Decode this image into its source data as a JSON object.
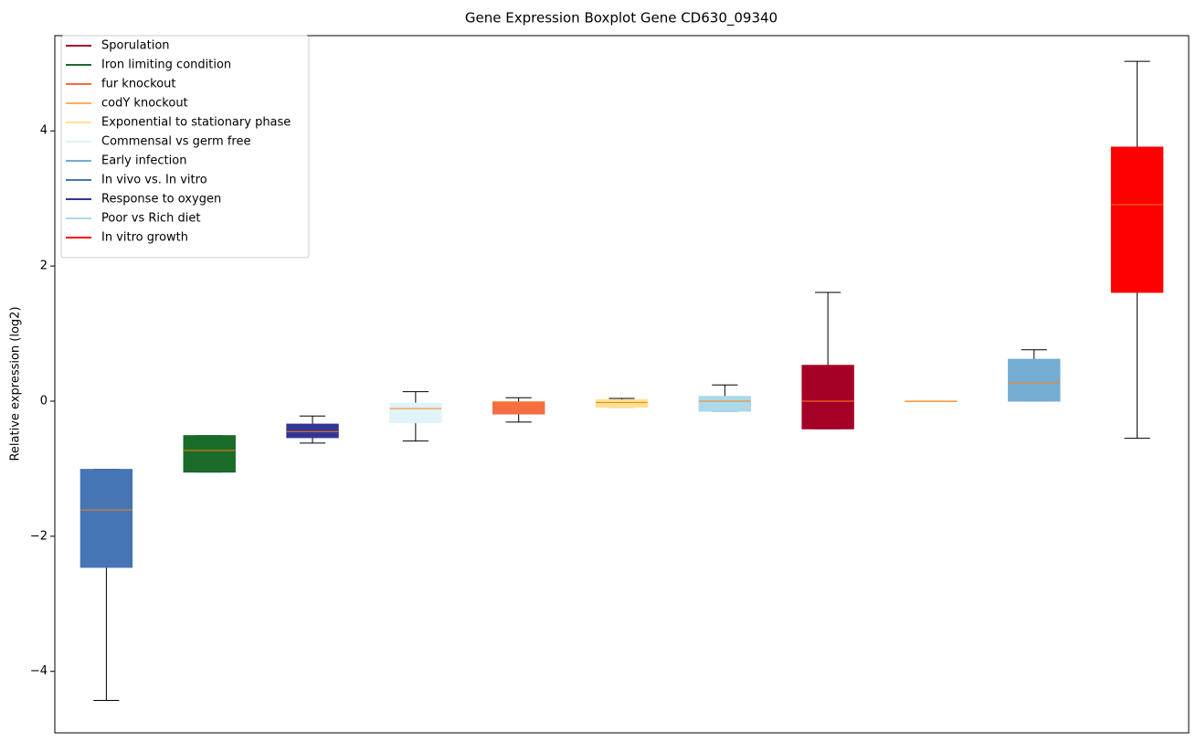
{
  "chart_data": {
    "type": "box",
    "title": "Gene Expression Boxplot Gene CD630_09340",
    "y_label": "Relative expression (log2)",
    "ylim": [
      -4.91,
      5.41
    ],
    "yticks": [
      {
        "value": -4,
        "label": "−4"
      },
      {
        "value": -2,
        "label": "−2"
      },
      0,
      2,
      4
    ],
    "median_color": "#ff7f0e",
    "whisker_color": "#000000",
    "legend_loc": "upper left",
    "boxes": [
      {
        "color": "#4575b4",
        "whislo": -4.43,
        "q1": -2.46,
        "med": -1.61,
        "q3": -1.01,
        "whishi": -1.01
      },
      {
        "color": "#1a6b2a",
        "whislo": -1.05,
        "q1": -1.05,
        "med": -0.73,
        "q3": -0.51,
        "whishi": -0.51
      },
      {
        "color": "#313695",
        "whislo": -0.62,
        "q1": -0.54,
        "med": -0.45,
        "q3": -0.34,
        "whishi": -0.22
      },
      {
        "color": "#e0f3f8",
        "whislo": -0.59,
        "q1": -0.32,
        "med": -0.11,
        "q3": -0.03,
        "whishi": 0.14
      },
      {
        "color": "#f46d43",
        "whislo": -0.31,
        "q1": -0.19,
        "med": -0.02,
        "q3": -0.01,
        "whishi": 0.05
      },
      {
        "color": "#fee090",
        "whislo": -0.09,
        "q1": -0.09,
        "med": -0.02,
        "q3": 0.02,
        "whishi": 0.04
      },
      {
        "color": "#abd9e9",
        "whislo": -0.15,
        "q1": -0.15,
        "med": 0,
        "q3": 0.07,
        "whishi": 0.24
      },
      {
        "color": "#a50026",
        "whislo": -0.41,
        "q1": -0.41,
        "med": 0,
        "q3": 0.53,
        "whishi": 1.61
      },
      {
        "color": "#fdae61",
        "whislo": 0,
        "q1": 0,
        "med": 0,
        "q3": 0,
        "whishi": 0
      },
      {
        "color": "#74add1",
        "whislo": 0,
        "q1": 0,
        "med": 0.27,
        "q3": 0.62,
        "whishi": 0.76
      },
      {
        "color": "#ff0000",
        "whislo": -0.55,
        "q1": 1.61,
        "med": 2.91,
        "q3": 3.76,
        "whishi": 5.03
      }
    ],
    "legend": [
      {
        "name": "Sporulation",
        "color": "#a50026"
      },
      {
        "name": "Iron limiting condition",
        "color": "#1a6b2a"
      },
      {
        "name": "fur knockout",
        "color": "#f46d43"
      },
      {
        "name": "codY knockout",
        "color": "#fdae61"
      },
      {
        "name": "Exponential to stationary phase",
        "color": "#fee090"
      },
      {
        "name": "Commensal vs germ free",
        "color": "#e0f3f8"
      },
      {
        "name": "Early infection",
        "color": "#74add1"
      },
      {
        "name": "In vivo vs. In vitro",
        "color": "#4575b4"
      },
      {
        "name": "Response to oxygen",
        "color": "#313695"
      },
      {
        "name": "Poor vs Rich diet",
        "color": "#abd9e9"
      },
      {
        "name": "In vitro growth",
        "color": "#ff0000"
      }
    ]
  }
}
